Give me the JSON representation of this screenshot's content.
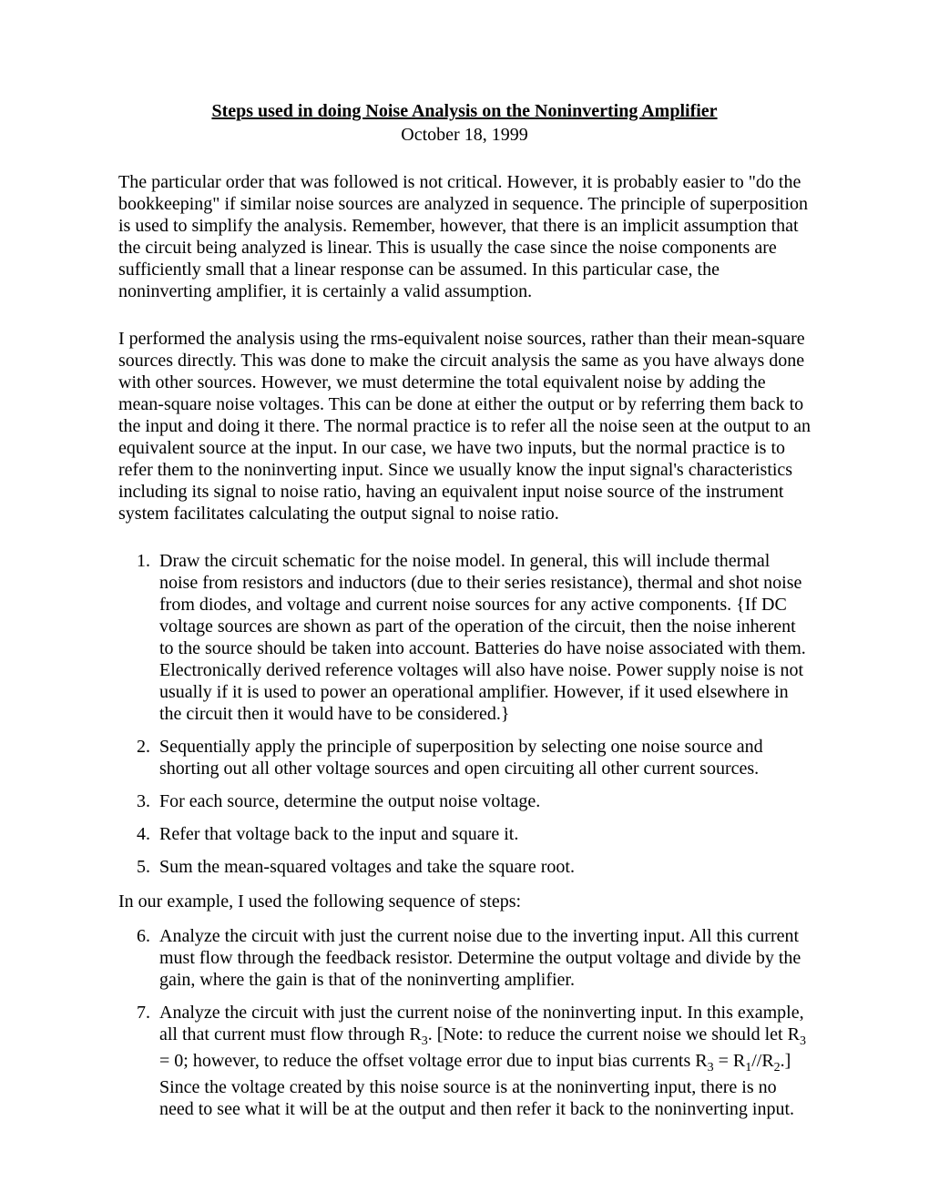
{
  "title": "Steps used in doing Noise Analysis on the Noninverting Amplifier",
  "date": "October 18, 1999",
  "para1": "The particular order that was followed is not critical.  However, it is probably easier to \"do the bookkeeping\" if similar noise sources are analyzed in sequence.  The principle of superposition is used to simplify the analysis. Remember, however, that there is an implicit assumption that the circuit being analyzed is linear.  This is usually the case since the noise components are sufficiently small that a linear response can be assumed.  In this particular case, the noninverting amplifier, it is certainly a valid assumption.",
  "para2": "I performed the analysis using the rms-equivalent noise sources, rather than their mean-square sources directly.  This was done to make the circuit analysis the same as you have always done with other sources.   However, we must determine the total equivalent noise by adding the mean-square noise voltages.  This can be done at either the output or by referring them back to the input and doing it there.  The normal practice is to refer all the noise seen at the output to an equivalent source at the input.  In our case, we have two inputs, but the normal practice is to refer them to the noninverting input.  Since we usually know the input signal's characteristics including its signal to noise ratio, having an equivalent input noise source of the instrument system facilitates calculating the output signal to noise ratio.",
  "steps": {
    "item1": "Draw the circuit schematic for the noise model.  In general, this will include thermal noise from resistors and inductors (due to their series resistance), thermal and shot noise from diodes, and voltage and current noise sources for any active components.  {If DC voltage sources are shown as part of the operation of the circuit, then the noise inherent to the source should be taken into account.  Batteries do have noise associated with them.  Electronically derived reference voltages will also have noise.  Power supply noise is not usually if it is used to power an operational amplifier.  However, if it used elsewhere in the circuit then it would have to be considered.}",
    "item2": "Sequentially apply the principle of superposition by selecting one noise source and shorting out all other voltage sources and open circuiting all other current sources.",
    "item3": "For each source, determine the output noise voltage.",
    "item4": "Refer that voltage back to the input and square it.",
    "item5": "Sum the mean-squared voltages and take the square root."
  },
  "interlude": "In our example, I used the following sequence of steps:",
  "steps2": {
    "item6": "Analyze the circuit with just the current noise due to the inverting input.  All this current must flow through the feedback resistor.  Determine the output voltage and divide by the gain, where the gain is that of the noninverting amplifier.",
    "item7_p1": "Analyze the circuit with just the current noise of the noninverting input.  In this example, all that current must flow through R",
    "item7_sub1": "3",
    "item7_p2": ".  [Note: to reduce the current noise we should let R",
    "item7_sub2": "3",
    "item7_p3": " = 0; however, to reduce the offset voltage error due to input bias currents R",
    "item7_sub3": "3",
    "item7_p4": " = R",
    "item7_sub4": "1",
    "item7_p5": "//R",
    "item7_sub5": "2",
    "item7_p6": ".]  Since the voltage created by this noise source is at the noninverting input, there is no need to see what it will be at the output and then refer it back to the noninverting input."
  }
}
